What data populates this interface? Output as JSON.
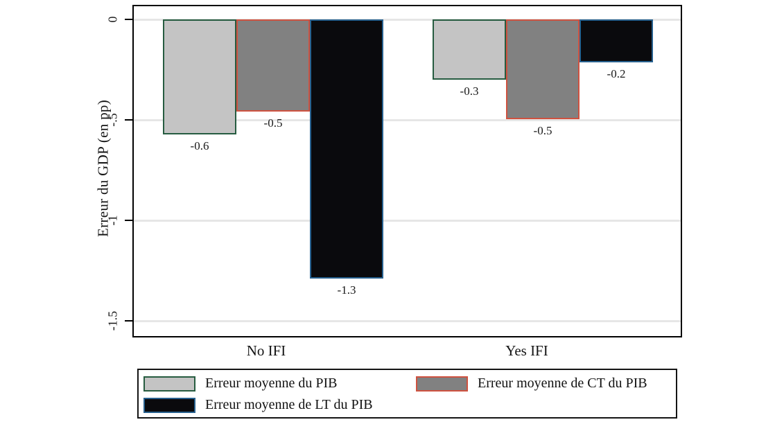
{
  "chart_data": {
    "type": "bar",
    "title": "",
    "ylabel": "Erreur du GDP (en pp)",
    "xlabel": "",
    "categories": [
      "No IFI",
      "Yes IFI"
    ],
    "series": [
      {
        "name": "Erreur moyenne du PIB",
        "values": [
          -0.6,
          -0.3
        ],
        "values_precise": [
          -0.573,
          -0.3
        ],
        "labels": [
          "-0.6",
          "-0.3"
        ],
        "fill": "#c4c4c4",
        "border": "#265c40"
      },
      {
        "name": "Erreur moyenne de CT du PIB",
        "values": [
          -0.5,
          -0.5
        ],
        "values_precise": [
          -0.459,
          -0.495
        ],
        "labels": [
          "-0.5",
          "-0.5"
        ],
        "fill": "#818181",
        "border": "#cf5240"
      },
      {
        "name": "Erreur moyenne de LT du PIB",
        "values": [
          -1.3,
          -0.2
        ],
        "values_precise": [
          -1.288,
          -0.214
        ],
        "labels": [
          "-1.3",
          "-0.2"
        ],
        "fill": "#0a0a0d",
        "border": "#27618f"
      }
    ],
    "y_ticks": [
      {
        "value": 0,
        "label": "0"
      },
      {
        "value": -0.5,
        "label": "-.5"
      },
      {
        "value": -1,
        "label": "-1"
      },
      {
        "value": -1.5,
        "label": "-1.5"
      }
    ],
    "ylim": [
      0.07,
      -1.58
    ],
    "grid": "horizontal",
    "colors": {
      "gridline": "#e6e6e6",
      "axis": "#000000",
      "text": "#141414",
      "background": "#ffffff"
    },
    "legend": {
      "position": "bottom",
      "entries": [
        "Erreur moyenne du PIB",
        "Erreur moyenne de CT du PIB",
        "Erreur moyenne de LT du PIB"
      ]
    }
  }
}
